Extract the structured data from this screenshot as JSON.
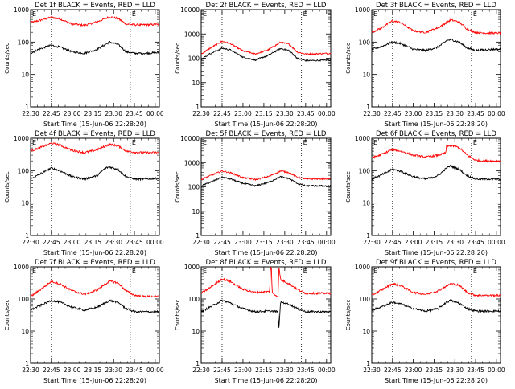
{
  "chart_data": [
    {
      "type": "line",
      "title": "Det 1f BLACK = Events, RED = LLD",
      "xlabel": "Start Time (15-Jun-06 22:28:20)",
      "ylabel": "Counts/sec",
      "y_scale": "log",
      "ylim": [
        1,
        1000
      ],
      "xlim": [
        22.5,
        24.05
      ],
      "x_tick_labels": [
        "22:30",
        "22:45",
        "23:00",
        "23:15",
        "23:30",
        "23:45",
        "00:00"
      ],
      "y_tick_labels": [
        "1",
        "10",
        "100",
        "1000"
      ],
      "markers": [
        "E",
        "E"
      ],
      "series": [
        {
          "color": "#ff0000",
          "x": [
            22.5,
            22.6,
            22.75,
            22.85,
            23.0,
            23.15,
            23.3,
            23.45,
            23.55,
            23.65,
            23.75,
            23.85,
            24.05
          ],
          "y": [
            400,
            460,
            580,
            520,
            360,
            330,
            420,
            600,
            540,
            360,
            340,
            340,
            350
          ]
        },
        {
          "color": "#000000",
          "x": [
            22.5,
            22.6,
            22.75,
            22.85,
            23.0,
            23.15,
            23.3,
            23.45,
            23.55,
            23.65,
            23.75,
            23.85,
            24.05
          ],
          "y": [
            45,
            60,
            80,
            70,
            50,
            45,
            60,
            100,
            85,
            50,
            45,
            45,
            47
          ]
        }
      ]
    },
    {
      "type": "line",
      "title": "Det 2f BLACK = Events, RED = LLD",
      "xlabel": "Start Time (15-Jun-06 22:28:20)",
      "ylabel": "Counts/sec",
      "y_scale": "log",
      "ylim": [
        1,
        10000
      ],
      "xlim": [
        22.5,
        24.05
      ],
      "x_tick_labels": [
        "22:30",
        "22:45",
        "23:00",
        "23:15",
        "23:30",
        "23:45",
        "00:00"
      ],
      "y_tick_labels": [
        "1",
        "10",
        "100",
        "1000",
        "10000"
      ],
      "markers": [
        "E",
        "E"
      ],
      "series": [
        {
          "color": "#ff0000",
          "x": [
            22.5,
            22.6,
            22.75,
            22.85,
            23.0,
            23.15,
            23.3,
            23.45,
            23.55,
            23.65,
            23.75,
            23.85,
            24.05
          ],
          "y": [
            150,
            250,
            500,
            400,
            200,
            150,
            220,
            450,
            380,
            180,
            150,
            150,
            160
          ]
        },
        {
          "color": "#000000",
          "x": [
            22.5,
            22.6,
            22.75,
            22.85,
            23.0,
            23.15,
            23.3,
            23.45,
            23.55,
            23.65,
            23.75,
            23.85,
            24.05
          ],
          "y": [
            90,
            150,
            260,
            220,
            110,
            85,
            130,
            250,
            210,
            100,
            80,
            80,
            85
          ]
        }
      ]
    },
    {
      "type": "line",
      "title": "Det 3f BLACK = Events, RED = LLD",
      "xlabel": "Start Time (15-Jun-06 22:28:20)",
      "ylabel": "Counts/sec",
      "y_scale": "log",
      "ylim": [
        1,
        1000
      ],
      "xlim": [
        22.5,
        24.05
      ],
      "x_tick_labels": [
        "22:30",
        "22:45",
        "23:00",
        "23:15",
        "23:30",
        "23:45",
        "00:00"
      ],
      "y_tick_labels": [
        "1",
        "10",
        "100",
        "1000"
      ],
      "markers": [
        "E",
        "E"
      ],
      "series": [
        {
          "color": "#ff0000",
          "x": [
            22.5,
            22.6,
            22.75,
            22.85,
            23.0,
            23.15,
            23.3,
            23.45,
            23.55,
            23.65,
            23.75,
            23.85,
            24.05
          ],
          "y": [
            200,
            260,
            450,
            400,
            220,
            200,
            280,
            480,
            420,
            250,
            200,
            190,
            190
          ]
        },
        {
          "color": "#000000",
          "x": [
            22.5,
            22.6,
            22.75,
            22.85,
            23.0,
            23.15,
            23.3,
            23.4,
            23.45,
            23.55,
            23.65,
            23.75,
            23.85,
            24.05
          ],
          "y": [
            60,
            70,
            100,
            90,
            60,
            55,
            70,
            110,
            120,
            100,
            65,
            55,
            58,
            60
          ]
        }
      ]
    },
    {
      "type": "line",
      "title": "Det 4f BLACK = Events, RED = LLD",
      "xlabel": "Start Time (15-Jun-06 22:28:20)",
      "ylabel": "Counts/sec",
      "y_scale": "log",
      "ylim": [
        1,
        1000
      ],
      "xlim": [
        22.5,
        24.05
      ],
      "x_tick_labels": [
        "22:30",
        "22:45",
        "23:00",
        "23:15",
        "23:30",
        "23:45",
        "00:00"
      ],
      "y_tick_labels": [
        "1",
        "10",
        "100",
        "1000"
      ],
      "markers": [
        "E",
        "E"
      ],
      "series": [
        {
          "color": "#ff0000",
          "x": [
            22.5,
            22.6,
            22.75,
            22.85,
            23.0,
            23.15,
            23.3,
            23.45,
            23.55,
            23.65,
            23.75,
            23.85,
            24.05
          ],
          "y": [
            400,
            500,
            700,
            620,
            420,
            360,
            440,
            650,
            580,
            400,
            370,
            360,
            360
          ]
        },
        {
          "color": "#000000",
          "x": [
            22.5,
            22.6,
            22.75,
            22.85,
            23.0,
            23.15,
            23.3,
            23.4,
            23.45,
            23.55,
            23.65,
            23.75,
            23.85,
            24.05
          ],
          "y": [
            55,
            75,
            120,
            100,
            65,
            55,
            70,
            120,
            130,
            110,
            65,
            55,
            55,
            58
          ]
        }
      ]
    },
    {
      "type": "line",
      "title": "Det 5f BLACK = Events, RED = LLD",
      "xlabel": "Start Time (15-Jun-06 22:28:20)",
      "ylabel": "Counts/sec",
      "y_scale": "log",
      "ylim": [
        1,
        10000
      ],
      "xlim": [
        22.5,
        24.05
      ],
      "x_tick_labels": [
        "22:30",
        "22:45",
        "23:00",
        "23:15",
        "23:30",
        "23:45",
        "00:00"
      ],
      "y_tick_labels": [
        "1",
        "10",
        "100",
        "1000",
        "10000"
      ],
      "markers": [
        "E",
        "E"
      ],
      "series": [
        {
          "color": "#ff0000",
          "x": [
            22.5,
            22.6,
            22.75,
            22.85,
            23.0,
            23.15,
            23.3,
            23.45,
            23.55,
            23.65,
            23.75,
            23.85,
            24.05
          ],
          "y": [
            200,
            280,
            450,
            380,
            240,
            200,
            260,
            450,
            390,
            250,
            210,
            210,
            220
          ]
        },
        {
          "color": "#000000",
          "x": [
            22.5,
            22.6,
            22.75,
            22.85,
            23.0,
            23.15,
            23.3,
            23.45,
            23.55,
            23.65,
            23.75,
            23.85,
            24.05
          ],
          "y": [
            110,
            150,
            250,
            210,
            140,
            110,
            150,
            260,
            220,
            140,
            110,
            110,
            110
          ]
        }
      ]
    },
    {
      "type": "line",
      "title": "Det 6f BLACK = Events, RED = LLD",
      "xlabel": "Start Time (15-Jun-06 22:28:20)",
      "ylabel": "Counts/sec",
      "y_scale": "log",
      "ylim": [
        1,
        1000
      ],
      "xlim": [
        22.5,
        24.05
      ],
      "x_tick_labels": [
        "22:30",
        "22:45",
        "23:00",
        "23:15",
        "23:30",
        "23:45",
        "00:00"
      ],
      "y_tick_labels": [
        "1",
        "10",
        "100",
        "1000"
      ],
      "markers": [
        "E",
        "E"
      ],
      "series": [
        {
          "color": "#ff0000",
          "x": [
            22.5,
            22.6,
            22.75,
            22.85,
            23.0,
            23.15,
            23.3,
            23.39,
            23.4,
            23.45,
            23.55,
            23.65,
            23.75,
            23.85,
            24.05
          ],
          "y": [
            250,
            300,
            450,
            400,
            300,
            260,
            300,
            350,
            550,
            600,
            520,
            300,
            210,
            200,
            200
          ]
        },
        {
          "color": "#000000",
          "x": [
            22.5,
            22.6,
            22.75,
            22.85,
            23.0,
            23.15,
            23.3,
            23.4,
            23.45,
            23.55,
            23.65,
            23.75,
            23.85,
            24.05
          ],
          "y": [
            55,
            70,
            110,
            95,
            65,
            55,
            70,
            120,
            140,
            110,
            70,
            55,
            55,
            55
          ]
        }
      ]
    },
    {
      "type": "line",
      "title": "Det 7f BLACK = Events, RED = LLD",
      "xlabel": "Start Time (15-Jun-06 22:28:20)",
      "ylabel": "Counts/sec",
      "y_scale": "log",
      "ylim": [
        1,
        1000
      ],
      "xlim": [
        22.5,
        24.05
      ],
      "x_tick_labels": [
        "22:30",
        "22:45",
        "23:00",
        "23:15",
        "23:30",
        "23:45",
        "00:00"
      ],
      "y_tick_labels": [
        "1",
        "10",
        "100",
        "1000"
      ],
      "markers": [
        "E",
        "E"
      ],
      "series": [
        {
          "color": "#ff0000",
          "x": [
            22.5,
            22.6,
            22.75,
            22.85,
            23.0,
            23.15,
            23.3,
            23.45,
            23.55,
            23.65,
            23.75,
            23.85,
            24.05
          ],
          "y": [
            120,
            180,
            350,
            300,
            180,
            140,
            190,
            360,
            320,
            180,
            130,
            120,
            120
          ]
        },
        {
          "color": "#000000",
          "x": [
            22.5,
            22.6,
            22.75,
            22.85,
            23.0,
            23.15,
            23.3,
            23.45,
            23.55,
            23.65,
            23.75,
            23.85,
            24.05
          ],
          "y": [
            45,
            60,
            90,
            80,
            55,
            45,
            55,
            90,
            80,
            50,
            40,
            40,
            40
          ]
        }
      ]
    },
    {
      "type": "line",
      "title": "Det 8f BLACK = Events, RED = LLD",
      "xlabel": "Start Time (15-Jun-06 22:28:20)",
      "ylabel": "Counts/sec",
      "y_scale": "log",
      "ylim": [
        1,
        1000
      ],
      "xlim": [
        22.5,
        24.05
      ],
      "x_tick_labels": [
        "22:30",
        "22:45",
        "23:00",
        "23:15",
        "23:30",
        "23:45",
        "00:00"
      ],
      "y_tick_labels": [
        "1",
        "10",
        "100",
        "1000"
      ],
      "markers": [
        "E",
        "E"
      ],
      "series": [
        {
          "color": "#ff0000",
          "x": [
            22.5,
            22.6,
            22.75,
            22.85,
            23.0,
            23.15,
            23.32,
            23.33,
            23.34,
            23.35,
            23.42,
            23.43,
            23.45,
            23.55,
            23.65,
            23.75,
            23.85,
            24.05
          ],
          "y": [
            150,
            220,
            420,
            350,
            200,
            160,
            170,
            1000,
            1000,
            150,
            120,
            1000,
            400,
            300,
            200,
            150,
            150,
            150
          ]
        },
        {
          "color": "#000000",
          "x": [
            22.5,
            22.6,
            22.75,
            22.85,
            23.0,
            23.15,
            23.32,
            23.33,
            23.34,
            23.35,
            23.42,
            23.43,
            23.45,
            23.55,
            23.65,
            23.75,
            23.85,
            24.05
          ],
          "y": [
            40,
            55,
            90,
            75,
            50,
            40,
            42,
            42,
            42,
            42,
            40,
            12,
            80,
            70,
            50,
            40,
            40,
            40
          ]
        }
      ]
    },
    {
      "type": "line",
      "title": "Det 9f BLACK = Events, RED = LLD",
      "xlabel": "Start Time (15-Jun-06 22:28:20)",
      "ylabel": "Counts/sec",
      "y_scale": "log",
      "ylim": [
        1,
        1000
      ],
      "xlim": [
        22.5,
        24.05
      ],
      "x_tick_labels": [
        "22:30",
        "22:45",
        "23:00",
        "23:15",
        "23:30",
        "23:45",
        "00:00"
      ],
      "y_tick_labels": [
        "1",
        "10",
        "100",
        "1000"
      ],
      "markers": [
        "E",
        "E"
      ],
      "series": [
        {
          "color": "#ff0000",
          "x": [
            22.5,
            22.6,
            22.75,
            22.85,
            23.0,
            23.15,
            23.3,
            23.45,
            23.55,
            23.65,
            23.75,
            23.85,
            24.05
          ],
          "y": [
            130,
            180,
            300,
            260,
            160,
            140,
            180,
            300,
            270,
            160,
            130,
            130,
            130
          ]
        },
        {
          "color": "#000000",
          "x": [
            22.5,
            22.6,
            22.75,
            22.85,
            23.0,
            23.15,
            23.3,
            23.4,
            23.45,
            23.55,
            23.65,
            23.75,
            23.85,
            24.05
          ],
          "y": [
            45,
            55,
            80,
            70,
            50,
            42,
            50,
            80,
            90,
            75,
            50,
            42,
            42,
            42
          ]
        }
      ]
    }
  ]
}
